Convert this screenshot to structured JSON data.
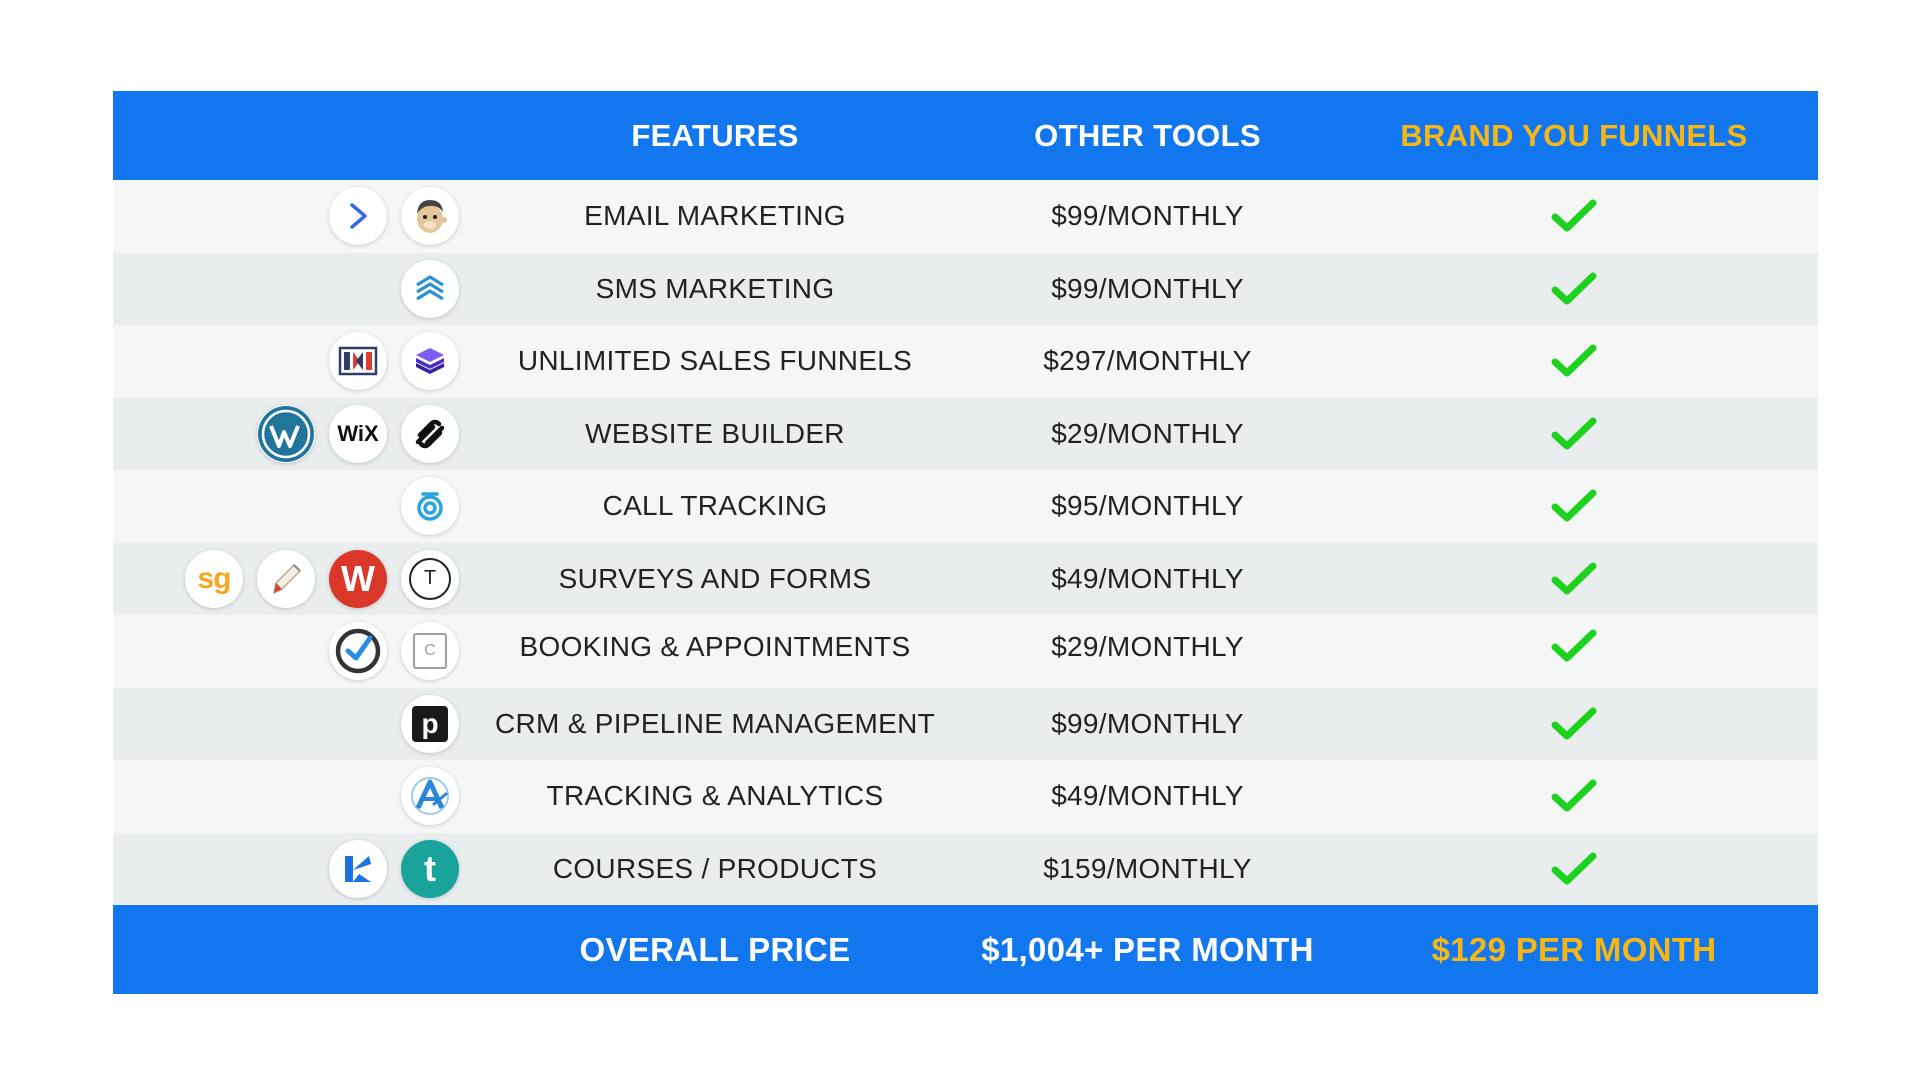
{
  "header": {
    "features": "FEATURES",
    "other_tools": "OTHER TOOLS",
    "brand": "BRAND YOU FUNNELS"
  },
  "rows": [
    {
      "feature": "EMAIL MARKETING",
      "price": "$99/MONTHLY",
      "icons": [
        "activecampaign-icon",
        "mailchimp-icon"
      ]
    },
    {
      "feature": "SMS MARKETING",
      "price": "$99/MONTHLY",
      "icons": [
        "sms-chevrons-icon"
      ]
    },
    {
      "feature": "UNLIMITED SALES FUNNELS",
      "price": "$297/MONTHLY",
      "icons": [
        "clickfunnels-icon",
        "layers-icon"
      ]
    },
    {
      "feature": "WEBSITE BUILDER",
      "price": "$29/MONTHLY",
      "icons": [
        "wordpress-icon",
        "wix-icon",
        "squarespace-icon"
      ]
    },
    {
      "feature": "CALL TRACKING",
      "price": "$95/MONTHLY",
      "icons": [
        "calltracking-icon"
      ]
    },
    {
      "feature": "SURVEYS AND FORMS",
      "price": "$49/MONTHLY",
      "icons": [
        "surveygizmo-icon",
        "pen-icon",
        "wufoo-icon",
        "typeform-icon"
      ]
    },
    {
      "feature": "BOOKING & APPOINTMENTS",
      "price": "$29/MONTHLY",
      "icons": [
        "check-circle-icon",
        "calendly-icon"
      ]
    },
    {
      "feature": "CRM & PIPELINE MANAGEMENT",
      "price": "$99/MONTHLY",
      "icons": [
        "pipedrive-icon"
      ]
    },
    {
      "feature": "TRACKING & ANALYTICS",
      "price": "$49/MONTHLY",
      "icons": [
        "analytics-a-icon"
      ]
    },
    {
      "feature": "COURSES / PRODUCTS",
      "price": "$159/MONTHLY",
      "icons": [
        "kajabi-icon",
        "teachable-icon"
      ]
    }
  ],
  "footer": {
    "label": "OVERALL PRICE",
    "other_total": "$1,004+ PER MONTH",
    "brand_total": "$129 PER MONTH"
  },
  "colors": {
    "header_blue": "#1277ee",
    "gold": "#f6b716",
    "check_green": "#1fd11f"
  },
  "logo_text": {
    "wix": "WiX",
    "surveygizmo": "sg",
    "wufoo": "W",
    "typeform": "T",
    "pipedrive": "p",
    "teachable": "t",
    "calendly": "C"
  }
}
